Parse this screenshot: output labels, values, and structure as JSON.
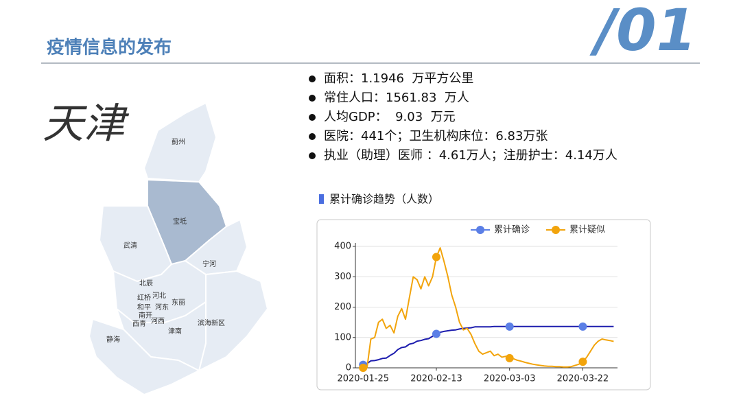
{
  "header": {
    "title": "疫情信息的发布",
    "number": "/01"
  },
  "city": "天津",
  "map": {
    "districts": [
      "蓟州",
      "宝坻",
      "武清",
      "宁河",
      "北辰",
      "红桥",
      "河北",
      "东丽",
      "和平",
      "河东",
      "南开",
      "西青",
      "河西",
      "津南",
      "滨海新区",
      "静海"
    ]
  },
  "facts": [
    "面积：1.1946  万平方公里",
    "常住人口：1561.83  万人",
    "人均GDP：  9.03  万元",
    "医院：441个；卫生机构床位：6.83万张",
    "执业（助理）医师 ：4.61万人；注册护士：4.14万人"
  ],
  "chart_data": {
    "type": "line",
    "title": "累计确诊趋势（人数）",
    "x": [
      "2020-01-25",
      "2020-01-26",
      "2020-01-27",
      "2020-01-28",
      "2020-01-29",
      "2020-01-30",
      "2020-01-31",
      "2020-02-01",
      "2020-02-02",
      "2020-02-03",
      "2020-02-04",
      "2020-02-05",
      "2020-02-06",
      "2020-02-07",
      "2020-02-08",
      "2020-02-09",
      "2020-02-10",
      "2020-02-11",
      "2020-02-12",
      "2020-02-13",
      "2020-02-14",
      "2020-02-15",
      "2020-02-16",
      "2020-02-17",
      "2020-02-18",
      "2020-02-19",
      "2020-02-20",
      "2020-02-21",
      "2020-02-22",
      "2020-02-23",
      "2020-02-24",
      "2020-02-25",
      "2020-02-26",
      "2020-02-27",
      "2020-02-28",
      "2020-02-29",
      "2020-03-01",
      "2020-03-02",
      "2020-03-03",
      "2020-03-04",
      "2020-03-05",
      "2020-03-06",
      "2020-03-07",
      "2020-03-08",
      "2020-03-09",
      "2020-03-10",
      "2020-03-11",
      "2020-03-12",
      "2020-03-13",
      "2020-03-14",
      "2020-03-15",
      "2020-03-16",
      "2020-03-17",
      "2020-03-18",
      "2020-03-19",
      "2020-03-20",
      "2020-03-21",
      "2020-03-22",
      "2020-03-23",
      "2020-03-24",
      "2020-03-25",
      "2020-03-26",
      "2020-03-27",
      "2020-03-28",
      "2020-03-29",
      "2020-03-30"
    ],
    "series": [
      {
        "name": "累计确诊",
        "color": "#1c1cae",
        "marker_color": "#5b7fe6",
        "values": [
          10,
          14,
          23,
          24,
          27,
          31,
          32,
          41,
          48,
          60,
          67,
          69,
          78,
          81,
          88,
          90,
          94,
          96,
          104,
          112,
          117,
          120,
          122,
          124,
          125,
          128,
          130,
          131,
          132,
          135,
          135,
          135,
          135,
          135,
          136,
          136,
          136,
          136,
          136,
          136,
          136,
          136,
          136,
          136,
          136,
          136,
          136,
          136,
          136,
          136,
          136,
          136,
          136,
          136,
          136,
          136,
          136,
          136,
          136,
          136,
          136,
          136,
          136,
          136,
          136,
          136
        ]
      },
      {
        "name": "累计疑似",
        "color": "#f2a40c",
        "marker_color": "#f2a40c",
        "values": [
          0,
          0,
          95,
          100,
          150,
          160,
          130,
          140,
          115,
          170,
          195,
          160,
          230,
          300,
          290,
          260,
          300,
          270,
          300,
          365,
          395,
          350,
          300,
          240,
          200,
          150,
          125,
          130,
          110,
          80,
          55,
          45,
          50,
          55,
          40,
          45,
          35,
          38,
          32,
          30,
          25,
          22,
          18,
          15,
          12,
          10,
          8,
          6,
          5,
          5,
          4,
          4,
          3,
          3,
          4,
          8,
          12,
          20,
          35,
          55,
          75,
          88,
          95,
          92,
          90,
          87
        ]
      }
    ],
    "xlim": [
      "2020-01-23",
      "2020-03-31"
    ],
    "xticks": [
      "2020-01-25",
      "2020-02-13",
      "2020-03-03",
      "2020-03-22"
    ],
    "ylim": [
      0,
      400
    ],
    "yticks": [
      0,
      100,
      200,
      300,
      400
    ],
    "grid": true
  }
}
